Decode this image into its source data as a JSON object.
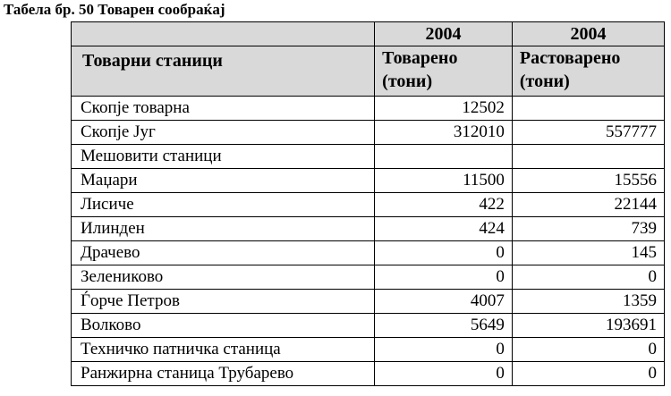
{
  "caption": "Табела бр. 50 Товарен сообраќај",
  "table": {
    "header": {
      "year_a": "2004",
      "year_b": "2004",
      "col_name": "Товарни станици",
      "col_a_line1": "Товарено",
      "col_a_line2": "(тони)",
      "col_b_line1": "Растоварено",
      "col_b_line2": "(тони)"
    },
    "rows": [
      {
        "name": "Скопје товарна",
        "loaded": "12502",
        "unloaded": ""
      },
      {
        "name": "Скопје Југ",
        "loaded": "312010",
        "unloaded": "557777"
      },
      {
        "name": "Мешовити станици",
        "loaded": "",
        "unloaded": ""
      },
      {
        "name": "Маџари",
        "loaded": "11500",
        "unloaded": "15556"
      },
      {
        "name": "Лисиче",
        "loaded": "422",
        "unloaded": "22144"
      },
      {
        "name": "Илинден",
        "loaded": "424",
        "unloaded": "739"
      },
      {
        "name": "Драчево",
        "loaded": "0",
        "unloaded": "145"
      },
      {
        "name": "Зелениково",
        "loaded": "0",
        "unloaded": "0"
      },
      {
        "name": "Ѓорче Петров",
        "loaded": "4007",
        "unloaded": "1359"
      },
      {
        "name": "Волково",
        "loaded": "5649",
        "unloaded": "193691"
      },
      {
        "name": "Техничко патничка станица",
        "loaded": "0",
        "unloaded": "0"
      },
      {
        "name": "Ранжирна станица Трубарево",
        "loaded": "0",
        "unloaded": "0"
      }
    ]
  }
}
